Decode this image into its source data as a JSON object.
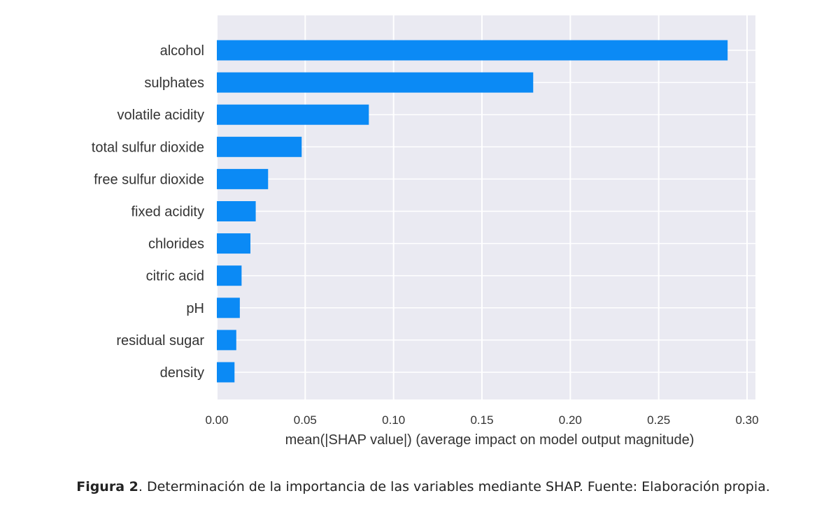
{
  "chart_data": {
    "type": "bar",
    "orientation": "horizontal",
    "categories": [
      "alcohol",
      "sulphates",
      "volatile acidity",
      "total sulfur dioxide",
      "free sulfur dioxide",
      "fixed acidity",
      "chlorides",
      "citric acid",
      "pH",
      "residual sugar",
      "density"
    ],
    "values": [
      0.289,
      0.179,
      0.086,
      0.048,
      0.029,
      0.022,
      0.019,
      0.014,
      0.013,
      0.011,
      0.01
    ],
    "xlabel": "mean(|SHAP value|) (average impact on model output magnitude)",
    "ylabel": "",
    "xlim": [
      0,
      0.3
    ],
    "xticks": [
      "0.00",
      "0.05",
      "0.10",
      "0.15",
      "0.20",
      "0.25",
      "0.30"
    ],
    "grid": true,
    "colors": {
      "bar": "#0b8af5",
      "plot_background": "#eaeaf2",
      "grid": "#ffffff"
    }
  },
  "caption": {
    "label": "Figura 2",
    "text": ". Determinación de la importancia de las variables mediante SHAP. Fuente: Elaboración propia."
  }
}
